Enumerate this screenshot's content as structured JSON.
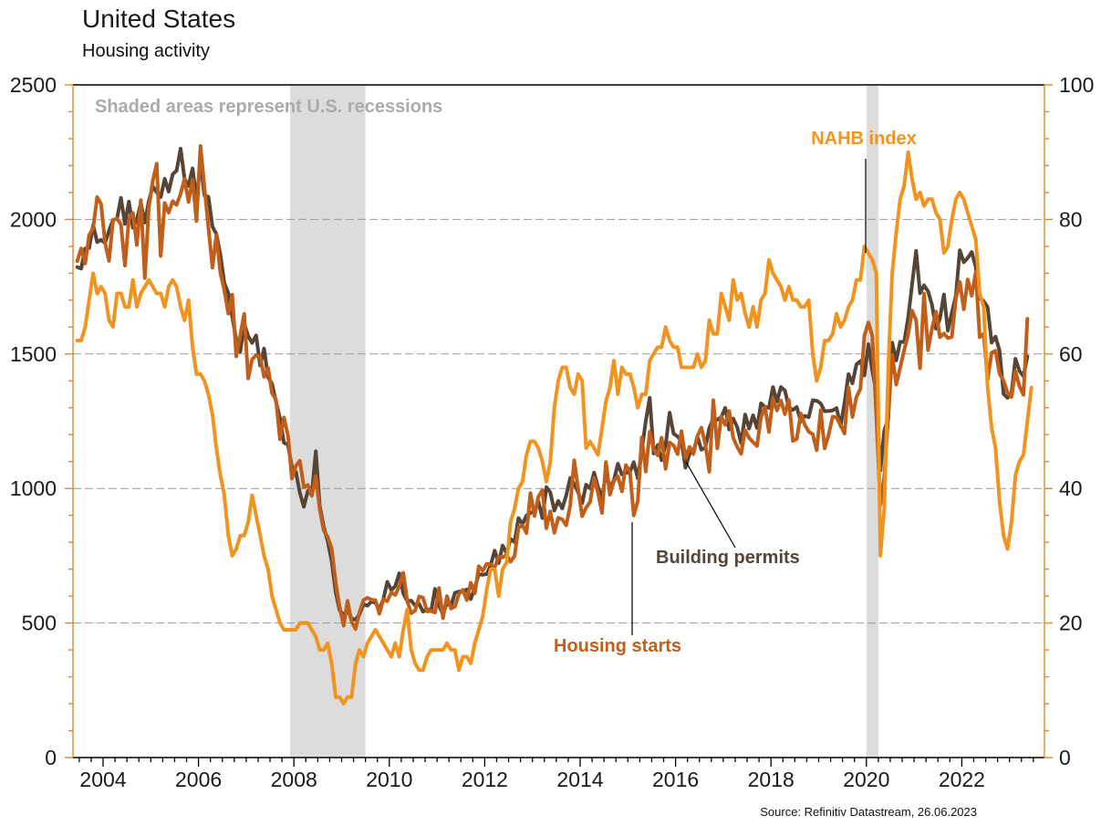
{
  "header": {
    "title": "United States",
    "subtitle": "Housing activity"
  },
  "note": "Shaded areas represent U.S. recessions",
  "source": "Source: Refinitiv Datastream, 26.06.2023",
  "chart_data": {
    "type": "line",
    "title": "United States",
    "subtitle": "Housing activity",
    "time": {
      "start": "2003-06",
      "frequency": "monthly"
    },
    "axes": {
      "left": {
        "min": 0,
        "max": 2500,
        "minor_step": 100,
        "major_step": 500,
        "ticks": [
          0,
          500,
          1000,
          1500,
          2000,
          2500
        ],
        "gridlines": [
          500,
          1000,
          1500,
          2000
        ]
      },
      "right": {
        "min": 0,
        "max": 100,
        "minor_step": 4,
        "major_step": 20,
        "ticks": [
          0,
          20,
          40,
          60,
          80,
          100
        ]
      },
      "x": {
        "min": 2003.4,
        "max": 2023.7,
        "ticks": [
          2004,
          2006,
          2008,
          2010,
          2012,
          2014,
          2016,
          2018,
          2020,
          2022
        ],
        "minor": "quarterly"
      }
    },
    "colors": {
      "axis": "#DD8A2C",
      "gridline": "#999999",
      "recession_band": "#DCDCDC"
    },
    "recession_bands": [
      {
        "from": 2007.92,
        "to": 2009.5
      },
      {
        "from": 2020.0,
        "to": 2020.25
      }
    ],
    "annotations": [
      {
        "id": "nahb",
        "label": "NAHB index",
        "color": "#F0941F",
        "pointer": [
          949,
          174,
          949,
          277
        ]
      },
      {
        "id": "permits",
        "label": "Building permits",
        "color": "#564537",
        "pointer": [
          806,
          600,
          752,
          506
        ]
      },
      {
        "id": "starts",
        "label": "Housing starts",
        "color": "#C05E1A",
        "pointer": [
          693,
          696,
          693,
          572
        ]
      }
    ],
    "series": [
      {
        "id": "building-permits",
        "name": "Building permits",
        "axis": "left",
        "color": "#564537",
        "values": [
          1823,
          1817,
          1892,
          1893,
          1979,
          1916,
          1924,
          1912,
          1958,
          1998,
          2003,
          2080,
          1983,
          2066,
          1969,
          2000,
          2060,
          1988,
          2068,
          2123,
          2100,
          2083,
          2151,
          2103,
          2168,
          2181,
          2263,
          2151,
          2125,
          2190,
          2075,
          2212,
          2089,
          2084,
          1973,
          1946,
          1869,
          1763,
          1727,
          1638,
          1553,
          1508,
          1613,
          1566,
          1541,
          1569,
          1457,
          1520,
          1413,
          1389,
          1322,
          1261,
          1170,
          1162,
          1080,
          1061,
          984,
          932,
          991,
          978,
          1138,
          937,
          857,
          805,
          730,
          615,
          547,
          531,
          550,
          516,
          513,
          532,
          570,
          564,
          580,
          575,
          551,
          589,
          653,
          622,
          637,
          685,
          610,
          582,
          583,
          565,
          571,
          542,
          552,
          544,
          627,
          563,
          534,
          574,
          563,
          612,
          617,
          617,
          625,
          589,
          631,
          682,
          679,
          682,
          715,
          769,
          723,
          788,
          760,
          812,
          801,
          890,
          868,
          900,
          909,
          915,
          952,
          890,
          1005,
          985,
          918,
          954,
          926,
          974,
          1039,
          1017,
          986,
          945,
          1014,
          1000,
          1059,
          1005,
          963,
          1057,
          1003,
          1031,
          1092,
          1052,
          1058,
          1060,
          1098,
          1038,
          1140,
          1250,
          1337,
          1130,
          1161,
          1105,
          1161,
          1282,
          1204,
          1193,
          1177,
          1077,
          1130,
          1136,
          1193,
          1144,
          1152,
          1225,
          1260,
          1255,
          1266,
          1300,
          1219,
          1260,
          1228,
          1168,
          1275,
          1223,
          1272,
          1225,
          1316,
          1303,
          1300,
          1377,
          1323,
          1377,
          1364,
          1301,
          1292,
          1303,
          1249,
          1270,
          1265,
          1328,
          1326,
          1316,
          1287,
          1288,
          1290,
          1299,
          1232,
          1317,
          1425,
          1391,
          1461,
          1474,
          1420,
          1536,
          1438,
          1356,
          1066,
          1216,
          1258,
          1542,
          1476,
          1545,
          1544,
          1635,
          1758,
          1883,
          1726,
          1755,
          1733,
          1683,
          1594,
          1630,
          1721,
          1586,
          1653,
          1717,
          1885,
          1841,
          1857,
          1879,
          1823,
          1708,
          1696,
          1674,
          1542,
          1564,
          1512,
          1351,
          1337,
          1354,
          1482,
          1437,
          1417,
          1491
        ]
      },
      {
        "id": "housing-starts",
        "name": "Housing starts",
        "axis": "left",
        "color": "#C05E1A",
        "values": [
          1845,
          1892,
          1836,
          1941,
          1967,
          2083,
          2057,
          1911,
          1846,
          1998,
          2003,
          1981,
          1828,
          2002,
          2024,
          1905,
          2072,
          1782,
          2042,
          2144,
          2207,
          1864,
          2061,
          2025,
          2068,
          2054,
          2095,
          2151,
          2065,
          2147,
          1994,
          2273,
          2119,
          1969,
          1821,
          1942,
          1802,
          1737,
          1650,
          1720,
          1491,
          1570,
          1649,
          1409,
          1480,
          1495,
          1490,
          1415,
          1448,
          1354,
          1330,
          1183,
          1264,
          1197,
          1037,
          1084,
          1103,
          1005,
          1013,
          973,
          1046,
          923,
          844,
          820,
          777,
          652,
          560,
          490,
          582,
          505,
          478,
          540,
          585,
          594,
          586,
          585,
          534,
          588,
          581,
          614,
          604,
          636,
          687,
          583,
          536,
          546,
          599,
          594,
          543,
          545,
          539,
          630,
          518,
          600,
          554,
          561,
          608,
          623,
          585,
          650,
          610,
          711,
          694,
          720,
          718,
          706,
          747,
          744,
          754,
          728,
          749,
          854,
          863,
          834,
          983,
          898,
          969,
          994,
          852,
          915,
          835,
          891,
          885,
          863,
          936,
          1105,
          999,
          897,
          928,
          950,
          1039,
          984,
          909,
          1098,
          977,
          1028,
          1045,
          989,
          1087,
          1063,
          900,
          954,
          1190,
          1063,
          1211,
          1147,
          1123,
          1189,
          1073,
          1171,
          1160,
          1128,
          1213,
          1113,
          1155,
          1128,
          1195,
          1226,
          1164,
          1062,
          1328,
          1149,
          1268,
          1236,
          1288,
          1189,
          1154,
          1129,
          1217,
          1188,
          1172,
          1158,
          1265,
          1303,
          1210,
          1334,
          1290,
          1327,
          1276,
          1329,
          1177,
          1184,
          1279,
          1237,
          1211,
          1202,
          1142,
          1291,
          1149,
          1199,
          1267,
          1264,
          1235,
          1204,
          1375,
          1266,
          1340,
          1371,
          1567,
          1617,
          1567,
          1269,
          938,
          1046,
          1273,
          1497,
          1386,
          1448,
          1514,
          1572,
          1661,
          1625,
          1447,
          1725,
          1514,
          1594,
          1657,
          1562,
          1576,
          1559,
          1563,
          1706,
          1768,
          1666,
          1777,
          1716,
          1805,
          1562,
          1575,
          1404,
          1505,
          1512,
          1426,
          1401,
          1357,
          1340,
          1436,
          1380,
          1348,
          1631
        ]
      },
      {
        "id": "nahb-index",
        "name": "NAHB index",
        "axis": "right",
        "color": "#F0941F",
        "values": [
          62,
          62,
          64,
          68,
          72,
          69,
          70,
          69,
          65,
          64,
          69,
          69,
          67,
          67,
          71,
          67,
          69,
          70,
          71,
          70,
          69,
          69,
          67,
          70,
          71,
          70,
          67,
          65,
          68,
          61,
          57,
          57,
          56,
          54,
          51,
          46,
          42,
          39,
          33,
          30,
          31,
          33,
          33,
          35,
          39,
          36,
          33,
          30,
          28,
          24,
          22,
          20,
          19,
          19,
          19,
          19,
          20,
          20,
          20,
          19,
          18,
          16,
          16,
          17,
          14,
          9,
          9,
          8,
          9,
          9,
          14,
          16,
          15,
          17,
          18,
          19,
          18,
          17,
          16,
          15,
          17,
          15,
          19,
          22,
          16,
          14,
          13,
          13,
          15,
          16,
          16,
          16,
          16,
          17,
          16,
          16,
          13,
          15,
          15,
          14,
          17,
          19,
          21,
          25,
          28,
          28,
          24,
          28,
          29,
          35,
          37,
          40,
          41,
          45,
          47,
          47,
          46,
          44,
          41,
          44,
          52,
          56,
          58,
          58,
          55,
          54,
          57,
          56,
          46,
          47,
          46,
          45,
          49,
          53,
          55,
          59,
          54,
          58,
          57,
          57,
          55,
          52,
          54,
          54,
          59,
          60,
          61,
          61,
          64,
          62,
          61,
          61,
          58,
          58,
          58,
          58,
          60,
          58,
          59,
          65,
          63,
          63,
          69,
          67,
          65,
          71,
          68,
          69,
          66,
          64,
          67,
          64,
          68,
          69,
          74,
          72,
          71,
          70,
          68,
          70,
          68,
          68,
          67,
          67,
          68,
          60,
          56,
          58,
          62,
          62,
          63,
          66,
          64,
          65,
          67,
          68,
          71,
          71,
          76,
          75,
          74,
          72,
          30,
          37,
          58,
          72,
          78,
          83,
          85,
          90,
          86,
          83,
          84,
          82,
          83,
          83,
          81,
          80,
          75,
          76,
          80,
          83,
          84,
          83,
          81,
          79,
          77,
          69,
          67,
          55,
          49,
          46,
          38,
          33,
          31,
          35,
          42,
          44,
          45,
          50,
          55
        ]
      }
    ]
  }
}
